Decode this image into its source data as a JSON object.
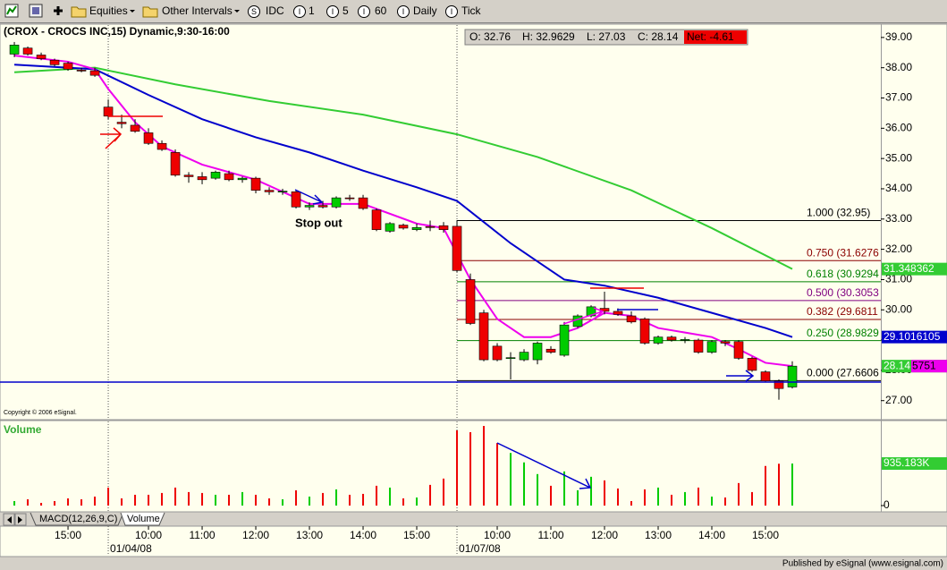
{
  "toolbar": [
    "Equities",
    "Other Intervals",
    "IDC",
    "1",
    "5",
    "60",
    "Daily",
    "Tick"
  ],
  "chart_data": {
    "type": "candlestick",
    "title": "(CROX - CROCS INC,15) Dynamic,9:30-16:00",
    "ohlc_box": [
      "O: 32.76",
      "H: 32.9629",
      "L: 27.03",
      "C: 28.14",
      "Net: -4.61"
    ],
    "up_color": "#00cc00",
    "down_color": "#ee0000",
    "open": [
      38.45,
      38.65,
      38.42,
      38.25,
      38.15,
      37.92,
      37.9,
      36.7,
      36.2,
      36.1,
      35.85,
      35.5,
      35.2,
      34.45,
      34.4,
      34.35,
      34.5,
      34.3,
      34.35,
      33.95,
      33.9,
      33.9,
      33.4,
      33.45,
      33.4,
      33.7,
      33.7,
      33.3,
      32.6,
      32.8,
      32.65,
      32.75,
      32.78,
      32.76,
      31.0,
      29.9,
      28.8,
      28.4,
      28.35,
      28.35,
      28.7,
      28.5,
      29.45,
      29.8,
      30.05,
      29.95,
      29.8,
      29.7,
      28.9,
      29.1,
      29.0,
      29.0,
      28.6,
      28.95,
      28.95,
      28.4,
      27.95,
      27.65,
      27.45
    ],
    "high": [
      38.85,
      38.7,
      38.5,
      38.3,
      38.2,
      38.0,
      38.0,
      36.95,
      36.45,
      36.3,
      36.0,
      35.6,
      35.3,
      34.55,
      34.55,
      34.6,
      34.6,
      34.4,
      34.4,
      34.05,
      34.0,
      33.95,
      33.55,
      33.6,
      33.75,
      33.8,
      33.8,
      33.35,
      32.9,
      32.85,
      32.85,
      32.95,
      32.9,
      32.9629,
      31.2,
      30.0,
      28.9,
      28.6,
      28.7,
      28.95,
      28.8,
      29.6,
      29.85,
      30.15,
      30.6,
      30.05,
      29.95,
      29.75,
      29.15,
      29.15,
      29.1,
      29.05,
      29.0,
      29.0,
      29.0,
      28.45,
      28.0,
      27.7,
      28.3
    ],
    "low": [
      38.35,
      38.4,
      38.25,
      38.05,
      37.9,
      37.85,
      37.7,
      36.3,
      36.0,
      35.85,
      35.45,
      35.25,
      34.4,
      34.2,
      34.15,
      34.3,
      34.25,
      34.2,
      33.85,
      33.8,
      33.8,
      33.35,
      33.3,
      33.35,
      33.35,
      33.6,
      33.3,
      32.6,
      32.55,
      32.65,
      32.6,
      32.6,
      32.55,
      31.25,
      29.5,
      28.3,
      28.3,
      27.7,
      28.3,
      28.2,
      28.55,
      28.45,
      29.4,
      29.75,
      29.85,
      29.8,
      29.55,
      28.85,
      28.85,
      28.95,
      28.9,
      28.55,
      28.55,
      28.8,
      28.35,
      27.95,
      27.6,
      27.03,
      27.4
    ],
    "close": [
      38.75,
      38.45,
      38.3,
      38.1,
      37.95,
      37.9,
      37.75,
      36.4,
      36.15,
      35.9,
      35.5,
      35.3,
      34.45,
      34.4,
      34.3,
      34.55,
      34.3,
      34.35,
      33.95,
      33.9,
      33.92,
      33.4,
      33.45,
      33.4,
      33.7,
      33.68,
      33.35,
      32.65,
      32.85,
      32.7,
      32.72,
      32.72,
      32.65,
      31.3,
      29.55,
      28.35,
      28.35,
      28.42,
      28.6,
      28.9,
      28.6,
      29.5,
      29.8,
      30.1,
      29.95,
      29.85,
      29.6,
      28.9,
      29.1,
      29.0,
      29.02,
      28.6,
      28.95,
      28.9,
      28.4,
      28.0,
      27.65,
      27.4,
      28.14
    ],
    "xlim": [
      -1.07,
      64.6
    ],
    "ylim": [
      26.43,
      39.41
    ],
    "yticks": [
      {
        "value": 27,
        "label": "27.00"
      },
      {
        "value": 28,
        "label": "28.00"
      },
      {
        "value": 29,
        "label": "29.00"
      },
      {
        "value": 30,
        "label": "30.00"
      },
      {
        "value": 31,
        "label": "31.00"
      },
      {
        "value": 32,
        "label": "32.00"
      },
      {
        "value": 33,
        "label": "33.00"
      },
      {
        "value": 34,
        "label": "34.00"
      },
      {
        "value": 35,
        "label": "35.00"
      },
      {
        "value": 36,
        "label": "36.00"
      },
      {
        "value": 37,
        "label": "37.00"
      },
      {
        "value": 38,
        "label": "38.00"
      },
      {
        "value": 39,
        "label": "39.00"
      }
    ],
    "xticks": [
      {
        "value": 4,
        "label": "15:00"
      },
      {
        "value": 10,
        "label": "10:00"
      },
      {
        "value": 14,
        "label": "11:00"
      },
      {
        "value": 18,
        "label": "12:00"
      },
      {
        "value": 22,
        "label": "13:00"
      },
      {
        "value": 26,
        "label": "14:00"
      },
      {
        "value": 30,
        "label": "15:00"
      },
      {
        "value": 36,
        "label": "10:00"
      },
      {
        "value": 40,
        "label": "11:00"
      },
      {
        "value": 44,
        "label": "12:00"
      },
      {
        "value": 48,
        "label": "13:00"
      },
      {
        "value": 52,
        "label": "14:00"
      },
      {
        "value": 56,
        "label": "15:00"
      }
    ],
    "date_ticks": [
      {
        "value": 7,
        "label": "01/04/08"
      },
      {
        "value": 33,
        "label": "01/07/08"
      }
    ],
    "series": [
      {
        "color": "#33cc33",
        "x": [
          0,
          6,
          12,
          19,
          26,
          33,
          39,
          46,
          52,
          58
        ],
        "values": [
          37.85,
          38.0,
          37.45,
          36.9,
          36.45,
          35.8,
          35.05,
          33.95,
          32.7,
          31.35
        ]
      },
      {
        "color": "#0000cc",
        "x": [
          0,
          6,
          10,
          14,
          18,
          22,
          26,
          30,
          33,
          35,
          37,
          39,
          41,
          44,
          48,
          52,
          56,
          58
        ],
        "values": [
          38.1,
          37.95,
          37.1,
          36.3,
          35.7,
          35.2,
          34.6,
          34.05,
          33.6,
          32.9,
          32.2,
          31.6,
          31.0,
          30.8,
          30.4,
          29.9,
          29.4,
          29.1
        ]
      },
      {
        "color": "#ee00ee",
        "x": [
          0,
          4,
          6,
          7,
          9,
          11,
          14,
          18,
          22,
          26,
          30,
          32,
          34,
          36,
          38,
          40,
          42,
          44,
          46,
          48,
          52,
          54,
          56,
          58
        ],
        "values": [
          38.4,
          38.2,
          37.95,
          37.3,
          36.2,
          35.4,
          34.8,
          34.3,
          33.5,
          33.5,
          32.85,
          32.7,
          31.0,
          29.7,
          29.1,
          29.1,
          29.4,
          29.9,
          29.8,
          29.4,
          29.1,
          28.7,
          28.25,
          28.14
        ]
      }
    ],
    "fib_start": 33,
    "fib": [
      {
        "label": "1.000 (32.95)",
        "value": 32.95,
        "color": "#000000"
      },
      {
        "label": "0.750 (31.6276",
        "value": 31.6276,
        "color": "#8b0000"
      },
      {
        "label": "0.618 (30.9294",
        "value": 30.9294,
        "color": "#008000"
      },
      {
        "label": "0.500 (30.3053",
        "value": 30.3053,
        "color": "#800080"
      },
      {
        "label": "0.382 (29.6811",
        "value": 29.6811,
        "color": "#8b0000"
      },
      {
        "label": "0.250 (28.9829",
        "value": 28.9829,
        "color": "#008000"
      },
      {
        "label": "0.000 (27.6606",
        "value": 27.6606,
        "color": "#000000"
      }
    ],
    "price_tags": [
      {
        "value": 31.348362,
        "color": "#33cc33",
        "text_color": "#ffffff"
      },
      {
        "value": 29.1016105,
        "color": "#0000cc",
        "text_color": "#ffffff"
      },
      {
        "value": 28.14,
        "color": "#33cc33",
        "text_color": "#ffffff",
        "suffix": "5751",
        "suffix_color": "#ee00ee"
      }
    ],
    "annotation": "Stop out",
    "copyright": "Copyright © 2006 eSignal.",
    "volume": {
      "title": "Volume",
      "values": [
        100,
        140,
        60,
        100,
        160,
        140,
        200,
        400,
        160,
        240,
        240,
        280,
        400,
        300,
        280,
        240,
        240,
        300,
        240,
        160,
        140,
        340,
        200,
        280,
        360,
        240,
        260,
        440,
        400,
        160,
        180,
        460,
        600,
        1670,
        1630,
        1770,
        1390,
        1170,
        960,
        700,
        440,
        760,
        340,
        640,
        560,
        380,
        100,
        360,
        400,
        240,
        300,
        400,
        200,
        180,
        500,
        300,
        880,
        930,
        935.183
      ],
      "ylim": [
        0,
        1850
      ],
      "yticks": [
        0,
        {
          "value": 935.183,
          "label": "935.183K"
        }
      ],
      "tag_color": "#33cc33"
    }
  },
  "tabs": [
    "MACD(12,26,9,C)",
    "Volume"
  ],
  "footer": "Published by eSignal (www.esignal.com)"
}
